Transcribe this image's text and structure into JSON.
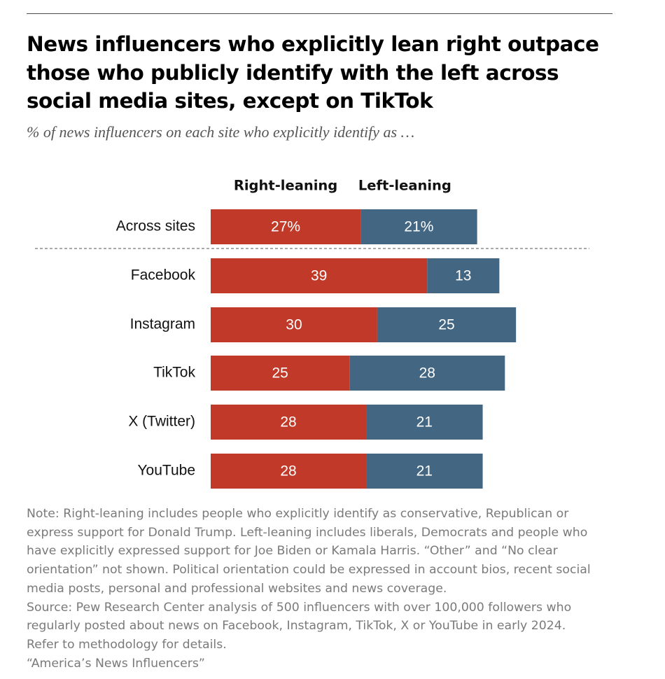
{
  "title": "News influencers who explicitly lean right outpace those who publicly identify with the left across social media sites, except on TikTok",
  "subtitle": "% of news influencers on each site who explicitly identify as …",
  "colors": {
    "right": "#C13A29",
    "left": "#436783",
    "bar_text": "#ffffff",
    "divider": "#777777"
  },
  "chart_data": {
    "type": "bar",
    "orientation": "horizontal",
    "stacked": true,
    "title": "News influencers who explicitly lean right outpace those who publicly identify with the left across social media sites, except on TikTok",
    "xlabel": "",
    "ylabel": "",
    "xlim": [
      0,
      60
    ],
    "grid": false,
    "categories": [
      "Across sites",
      "Facebook",
      "Instagram",
      "TikTok",
      "X (Twitter)",
      "YouTube"
    ],
    "series": [
      {
        "name": "Right-leaning",
        "values": [
          27,
          39,
          30,
          25,
          28,
          28
        ],
        "labels": [
          "27%",
          "39",
          "30",
          "25",
          "28",
          "28"
        ]
      },
      {
        "name": "Left-leaning",
        "values": [
          21,
          13,
          25,
          28,
          21,
          21
        ],
        "labels": [
          "21%",
          "13",
          "25",
          "28",
          "21",
          "21"
        ]
      }
    ]
  },
  "notes": {
    "note": "Note: Right-leaning includes people who explicitly identify as conservative, Republican or\nexpress support for Donald Trump. Left-leaning includes liberals, Democrats and people who\nhave explicitly expressed support for Joe Biden or Kamala Harris. “Other” and “No clear\norientation” not shown. Political orientation could be expressed in account bios, recent social\nmedia posts, personal and professional websites and news coverage.",
    "source": "Source: Pew Research Center analysis of 500 influencers with over 100,000 followers who\nregularly posted about news on Facebook, Instagram, TikTok, X or YouTube in early 2024.\nRefer to methodology for details.",
    "report": "“America’s News Influencers”"
  }
}
